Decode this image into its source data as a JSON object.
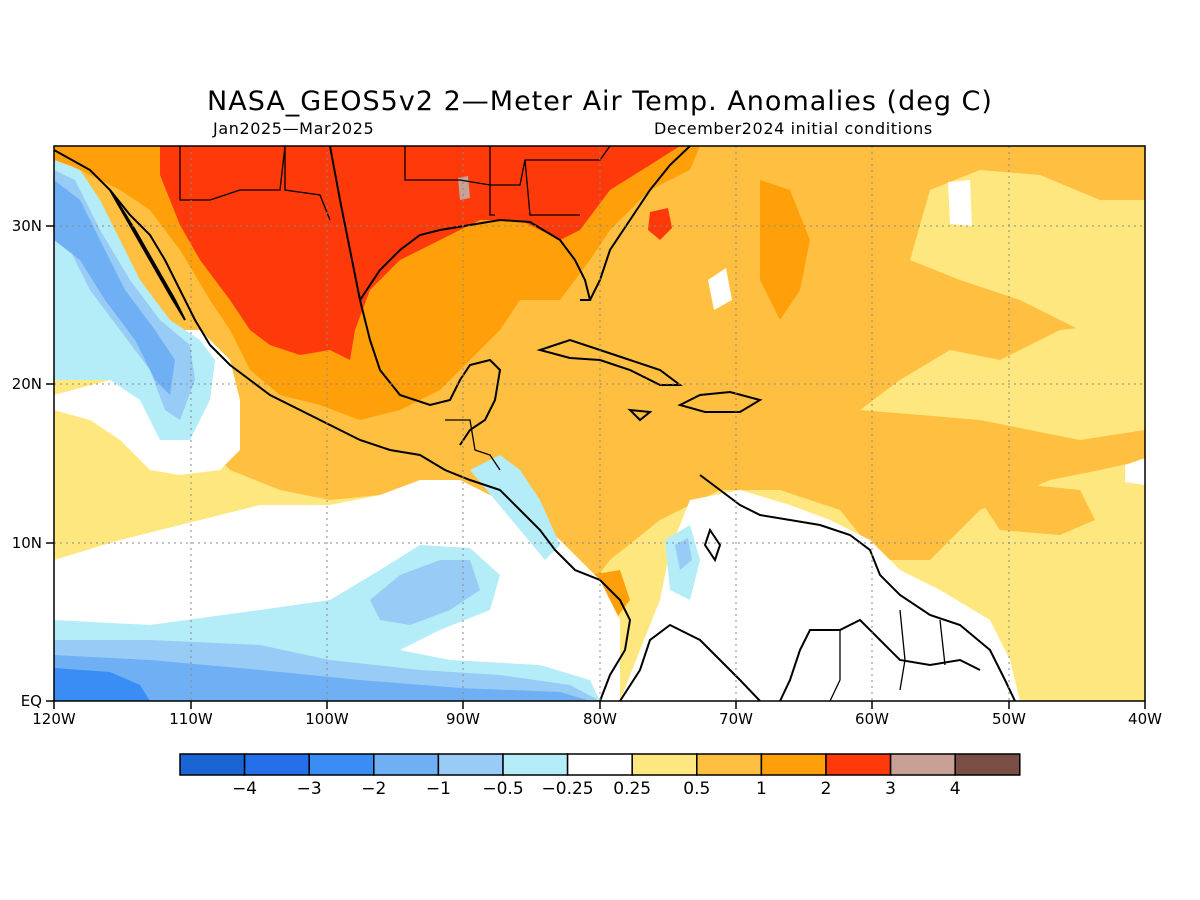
{
  "title": "NASA_GEOS5v2 2—Meter Air Temp. Anomalies (deg C)",
  "subtitle_left": "Jan2025—Mar2025",
  "subtitle_right": "December2024 initial conditions",
  "map": {
    "lon_range": [
      -120,
      -40
    ],
    "lat_range": [
      0,
      35
    ],
    "lat_ticks": [
      {
        "value": 30,
        "label": "30N"
      },
      {
        "value": 20,
        "label": "20N"
      },
      {
        "value": 10,
        "label": "10N"
      },
      {
        "value": 0,
        "label": "EQ"
      }
    ],
    "lon_ticks": [
      {
        "value": -120,
        "label": "120W"
      },
      {
        "value": -110,
        "label": "110W"
      },
      {
        "value": -100,
        "label": "100W"
      },
      {
        "value": -90,
        "label": "90W"
      },
      {
        "value": -80,
        "label": "80W"
      },
      {
        "value": -70,
        "label": "70W"
      },
      {
        "value": -60,
        "label": "60W"
      },
      {
        "value": -50,
        "label": "50W"
      },
      {
        "value": -40,
        "label": "40W"
      }
    ]
  },
  "colorbar": {
    "colors": [
      "#1a64d4",
      "#256fea",
      "#3a8df5",
      "#6fb0f5",
      "#98cbf6",
      "#b4edf7",
      "#ffffff",
      "#ffe780",
      "#ffbf40",
      "#ffa00a",
      "#ff3a0a",
      "#c8a096",
      "#7a4e45"
    ],
    "labels": [
      "−4",
      "−3",
      "−2",
      "−1",
      "−0.5",
      "−0.25",
      "0.25",
      "0.5",
      "1",
      "2",
      "3",
      "4"
    ]
  }
}
